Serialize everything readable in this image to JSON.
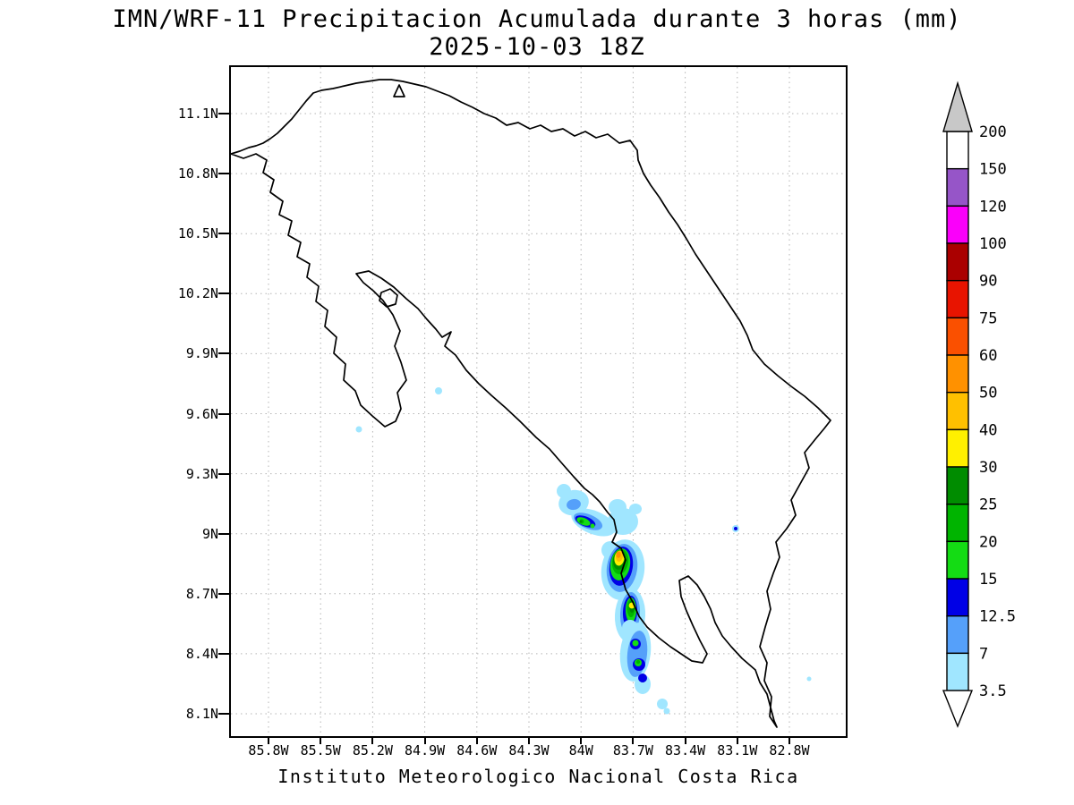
{
  "title": {
    "line1": "IMN/WRF-11 Precipitacion Acumulada durante 3 horas (mm)",
    "line2": "2025-10-03 18Z"
  },
  "caption": "Instituto Meteorologico Nacional Costa Rica",
  "axes": {
    "lat_labels": [
      "11.1N",
      "10.8N",
      "10.5N",
      "10.2N",
      "9.9N",
      "9.6N",
      "9.3N",
      "9N",
      "8.7N",
      "8.4N",
      "8.1N"
    ],
    "lon_labels": [
      "85.8W",
      "85.5W",
      "85.2W",
      "84.9W",
      "84.6W",
      "84.3W",
      "84W",
      "83.7W",
      "83.4W",
      "83.1W",
      "82.8W"
    ]
  },
  "colorbar": {
    "levels_top_to_bottom": [
      "200",
      "150",
      "120",
      "100",
      "90",
      "75",
      "60",
      "50",
      "40",
      "30",
      "25",
      "20",
      "15",
      "12.5",
      "7",
      "3.5"
    ],
    "below_min_color": "#ffffff"
  },
  "palette": {
    "3.5": "#a0e6ff",
    "7": "#55a0fa",
    "12.5": "#0000e6",
    "15": "#14dc14",
    "20": "#00b400",
    "25": "#008c00",
    "30": "#fff000",
    "40": "#ffc000",
    "50": "#ff9100",
    "60": "#fa5000",
    "75": "#e81400",
    "90": "#aa0000",
    "100": "#fa00fa",
    "120": "#9655c8",
    "150": "#ffffff",
    "200": "#c8c8c8"
  },
  "chart_data": {
    "type": "heatmap",
    "title": "IMN/WRF-11 Precipitacion Acumulada durante 3 horas (mm)",
    "valid_time": "2025-10-03 18Z",
    "region": "Costa Rica",
    "lat_ticks": [
      "11.1N",
      "10.8N",
      "10.5N",
      "10.2N",
      "9.9N",
      "9.6N",
      "9.3N",
      "9N",
      "8.7N",
      "8.4N",
      "8.1N"
    ],
    "lon_ticks": [
      "85.8W",
      "85.5W",
      "85.2W",
      "84.9W",
      "84.6W",
      "84.3W",
      "84W",
      "83.7W",
      "83.4W",
      "83.1W",
      "82.8W"
    ],
    "contour_levels_mm": [
      3.5,
      7,
      12.5,
      15,
      20,
      25,
      30,
      40,
      50,
      60,
      75,
      90,
      100,
      120,
      150,
      200
    ],
    "precipitation_cells": [
      {
        "center": "9.1N 84.0W",
        "max_band_mm": "25-30"
      },
      {
        "center": "8.9N 83.8W",
        "max_band_mm": "50-60"
      },
      {
        "center": "8.6N 83.7W",
        "max_band_mm": "30-40"
      },
      {
        "center": "8.4N 83.7W",
        "max_band_mm": "15-25"
      },
      {
        "center": "8.15N 83.5W",
        "max_band_mm": "3.5-7"
      },
      {
        "center": "9.7N 84.8W",
        "max_band_mm": "3.5-7"
      },
      {
        "center": "9.5N 85.3W",
        "max_band_mm": "3.5-7"
      },
      {
        "center": "9.0N 83.1W",
        "max_band_mm": "7-12.5"
      },
      {
        "center": "8.3N 82.7W",
        "max_band_mm": "3.5-7"
      }
    ]
  }
}
